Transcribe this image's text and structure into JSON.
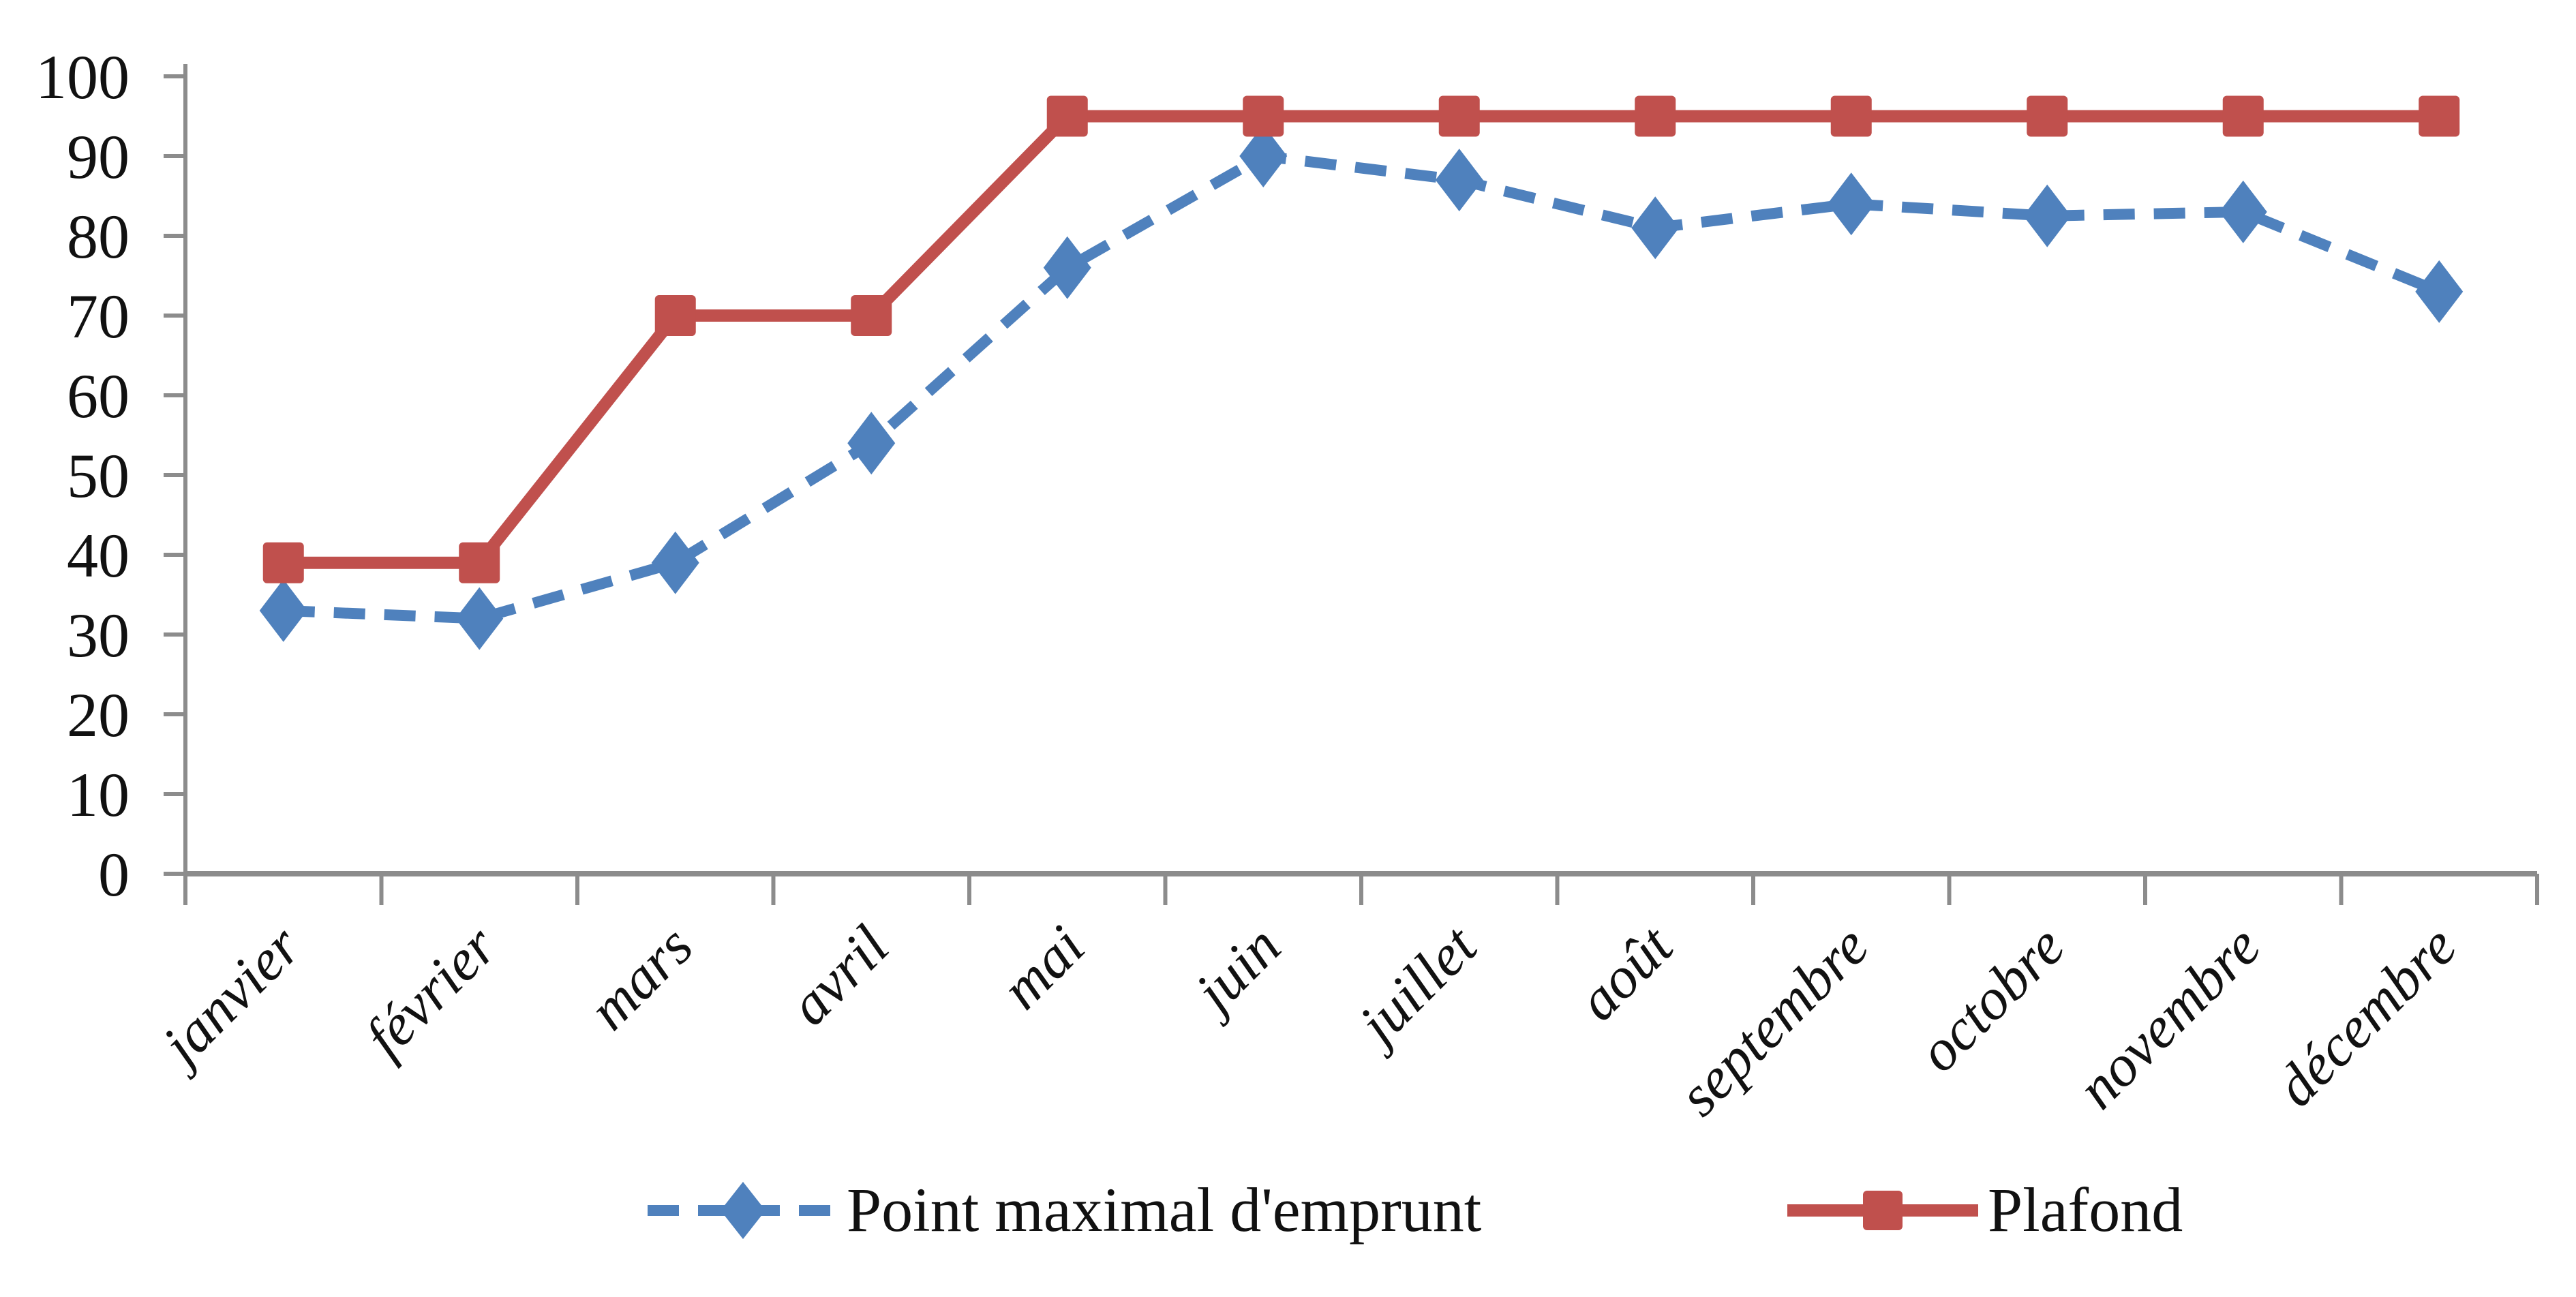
{
  "chart_data": {
    "type": "line",
    "title": "",
    "categories": [
      "janvier",
      "février",
      "mars",
      "avril",
      "mai",
      "juin",
      "juillet",
      "août",
      "septembre",
      "octobre",
      "novembre",
      "décembre"
    ],
    "series": [
      {
        "name": "Point maximal d'emprunt",
        "values": [
          33,
          32,
          39,
          54,
          76,
          90,
          87,
          81,
          84,
          82.5,
          83,
          73
        ],
        "color": "#4f81bd",
        "marker": "diamond",
        "line_style": "dashed"
      },
      {
        "name": "Plafond",
        "values": [
          39,
          39,
          70,
          70,
          95,
          95,
          95,
          95,
          95,
          95,
          95,
          95
        ],
        "color": "#c0504d",
        "marker": "square",
        "line_style": "solid"
      }
    ],
    "ylim": [
      0,
      100
    ],
    "yticks": [
      0,
      10,
      20,
      30,
      40,
      50,
      60,
      70,
      80,
      90,
      100
    ],
    "xlabel": "",
    "ylabel": "",
    "grid": false,
    "legend_position": "bottom",
    "background_color": "#ffffff",
    "axis_color": "#8c8c8c",
    "tick_label_color": "#111111",
    "x_label_rotation_deg": -45
  }
}
